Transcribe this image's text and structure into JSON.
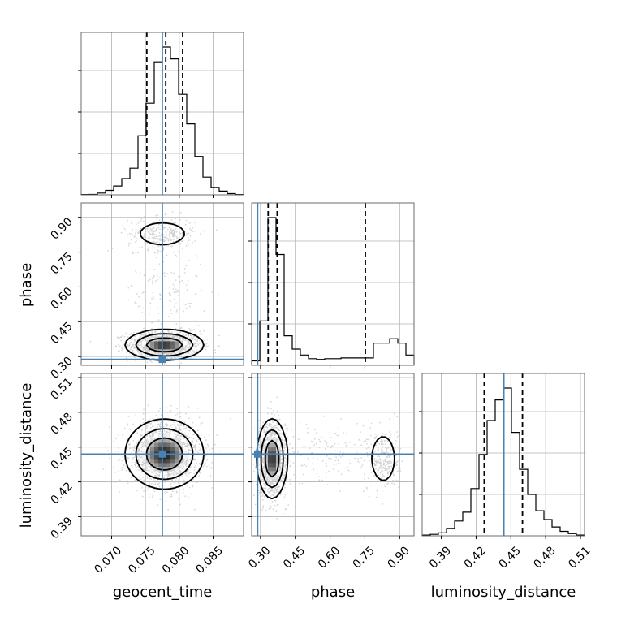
{
  "chart_data": {
    "type": "corner",
    "parameters": [
      "geocent_time",
      "phase",
      "luminosity_distance"
    ],
    "truth": {
      "geocent_time": 0.0775,
      "phase": 0.288,
      "luminosity_distance": 0.444
    },
    "colors": {
      "truth": "#4682b4",
      "hist": "#000000",
      "grid": "#b0b0b0",
      "points": "#c8c8c8"
    },
    "ticks": {
      "geocent_time": [
        "0.070",
        "0.075",
        "0.080",
        "0.085"
      ],
      "phase": [
        "0.30",
        "0.45",
        "0.60",
        "0.75",
        "0.90"
      ],
      "luminosity_distance": [
        "0.39",
        "0.42",
        "0.45",
        "0.48",
        "0.51"
      ]
    },
    "ranges": {
      "geocent_time": [
        0.0655,
        0.0895
      ],
      "phase": [
        0.262,
        0.962
      ],
      "luminosity_distance": [
        0.3735,
        0.5135
      ]
    },
    "histograms": {
      "geocent_time": {
        "quantiles": [
          0.0752,
          0.078,
          0.0805
        ],
        "edges": [
          0.0655,
          0.0667,
          0.0679,
          0.0691,
          0.0703,
          0.0715,
          0.0727,
          0.0739,
          0.0751,
          0.0763,
          0.0775,
          0.0787,
          0.0799,
          0.0811,
          0.0823,
          0.0835,
          0.0847,
          0.0859,
          0.0871,
          0.0883,
          0.0895
        ],
        "counts": [
          0.2,
          0.3,
          1.2,
          3,
          6,
          11,
          18,
          40,
          62,
          90,
          100,
          92,
          68,
          48,
          26,
          12,
          5,
          2.5,
          0.8,
          0.2
        ]
      },
      "phase": {
        "quantiles": [
          0.333,
          0.372,
          0.752
        ],
        "edges": [
          0.262,
          0.297,
          0.332,
          0.367,
          0.402,
          0.437,
          0.472,
          0.507,
          0.542,
          0.577,
          0.612,
          0.647,
          0.682,
          0.717,
          0.752,
          0.787,
          0.822,
          0.857,
          0.892,
          0.927,
          0.962
        ],
        "counts": [
          3,
          30,
          100,
          75,
          20,
          11,
          7,
          4.5,
          4,
          4.5,
          4.5,
          5,
          5,
          5,
          5,
          15,
          15,
          18,
          15,
          7
        ]
      },
      "luminosity_distance": {
        "quantiles": [
          0.427,
          0.4435,
          0.46
        ],
        "edges": [
          0.3735,
          0.3805,
          0.3875,
          0.3945,
          0.4015,
          0.4085,
          0.4155,
          0.4225,
          0.4295,
          0.4365,
          0.4435,
          0.4505,
          0.4575,
          0.4645,
          0.4715,
          0.4785,
          0.4855,
          0.4925,
          0.4995,
          0.5065,
          0.5135
        ],
        "counts": [
          0.5,
          1,
          2,
          5,
          10,
          16,
          32,
          55,
          78,
          92,
          100,
          70,
          45,
          28,
          17,
          11,
          6,
          3,
          1.5,
          0.5
        ]
      }
    },
    "scatter_pairs": [
      {
        "x": "geocent_time",
        "y": "phase",
        "modes": [
          {
            "mx": 0.0778,
            "my": 0.35,
            "sx": 0.0027,
            "sy": 0.03,
            "w": 0.72
          },
          {
            "mx": 0.0775,
            "my": 0.83,
            "sx": 0.0025,
            "sy": 0.035,
            "w": 0.18
          },
          {
            "mx": 0.0777,
            "my": 0.58,
            "sx": 0.0028,
            "sy": 0.12,
            "w": 0.1
          }
        ]
      },
      {
        "x": "geocent_time",
        "y": "luminosity_distance",
        "modes": [
          {
            "mx": 0.0778,
            "my": 0.444,
            "sx": 0.0027,
            "sy": 0.014,
            "w": 1.0
          }
        ]
      },
      {
        "x": "phase",
        "y": "luminosity_distance",
        "modes": [
          {
            "mx": 0.35,
            "my": 0.44,
            "sx": 0.03,
            "sy": 0.016,
            "w": 0.72
          },
          {
            "mx": 0.83,
            "my": 0.44,
            "sx": 0.035,
            "sy": 0.014,
            "w": 0.18
          },
          {
            "mx": 0.58,
            "my": 0.445,
            "sx": 0.12,
            "sy": 0.014,
            "w": 0.1
          }
        ]
      }
    ]
  }
}
